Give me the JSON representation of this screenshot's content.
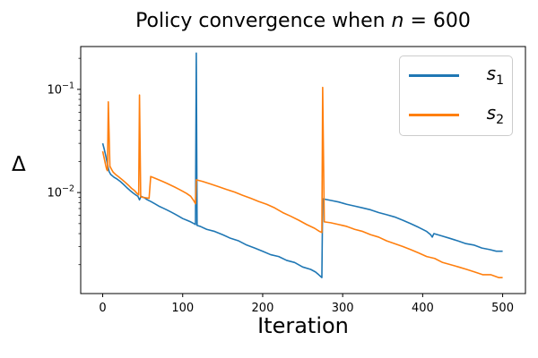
{
  "figure": {
    "title_prefix": "Policy convergence when ",
    "title_var": "n",
    "title_suffix": " = 600"
  },
  "colors": {
    "series1": "#1f77b4",
    "series2": "#ff7f0e",
    "spine": "#000000",
    "legend_border": "#cccccc",
    "background": "#ffffff"
  },
  "chart_data": {
    "type": "line",
    "title": "Policy convergence when n = 600",
    "xlabel": "Iteration",
    "ylabel": "Δ",
    "grid": false,
    "legend_position": "upper right",
    "x_axis": {
      "scale": "linear",
      "lim": [
        -27.5,
        528.5
      ],
      "ticks": [
        {
          "value": 0,
          "label": "0"
        },
        {
          "value": 100,
          "label": "100"
        },
        {
          "value": 200,
          "label": "200"
        },
        {
          "value": 300,
          "label": "300"
        },
        {
          "value": 400,
          "label": "400"
        },
        {
          "value": 500,
          "label": "500"
        }
      ]
    },
    "y_axis": {
      "scale": "log",
      "lim": [
        0.00105,
        0.26
      ],
      "major_ticks": [
        {
          "value": 0.1,
          "base": "10",
          "exp": "−1"
        },
        {
          "value": 0.01,
          "base": "10",
          "exp": "−2"
        }
      ],
      "minor_ticks": [
        0.002,
        0.003,
        0.004,
        0.005,
        0.006,
        0.007,
        0.008,
        0.009,
        0.02,
        0.03,
        0.04,
        0.05,
        0.06,
        0.07,
        0.08,
        0.09,
        0.2
      ]
    },
    "legend": {
      "entries": [
        {
          "var": "s",
          "sub": "1",
          "color": "#1f77b4"
        },
        {
          "var": "s",
          "sub": "2",
          "color": "#ff7f0e"
        }
      ]
    },
    "series": [
      {
        "name": "s_1",
        "color": "#1f77b4",
        "points": [
          [
            0,
            0.03
          ],
          [
            2,
            0.0262
          ],
          [
            4,
            0.0224
          ],
          [
            6,
            0.0187
          ],
          [
            8,
            0.016
          ],
          [
            10,
            0.015
          ],
          [
            14,
            0.0141
          ],
          [
            18,
            0.0135
          ],
          [
            22,
            0.0128
          ],
          [
            26,
            0.012
          ],
          [
            30,
            0.0112
          ],
          [
            34,
            0.0105
          ],
          [
            38,
            0.0099
          ],
          [
            42,
            0.0094
          ],
          [
            44,
            0.0092
          ],
          [
            46,
            0.0085
          ],
          [
            48,
            0.0092
          ],
          [
            52,
            0.0089
          ],
          [
            56,
            0.0085
          ],
          [
            60,
            0.0082
          ],
          [
            65,
            0.0078
          ],
          [
            70,
            0.0074
          ],
          [
            75,
            0.0071
          ],
          [
            80,
            0.0068
          ],
          [
            85,
            0.0065
          ],
          [
            90,
            0.0062
          ],
          [
            95,
            0.0059
          ],
          [
            100,
            0.0056
          ],
          [
            105,
            0.0054
          ],
          [
            110,
            0.0052
          ],
          [
            114,
            0.005
          ],
          [
            116,
            0.0049
          ],
          [
            117,
            0.225
          ],
          [
            118,
            0.0048
          ],
          [
            122,
            0.0047
          ],
          [
            130,
            0.0044
          ],
          [
            140,
            0.0042
          ],
          [
            150,
            0.0039
          ],
          [
            160,
            0.0036
          ],
          [
            170,
            0.0034
          ],
          [
            180,
            0.0031
          ],
          [
            190,
            0.0029
          ],
          [
            200,
            0.0027
          ],
          [
            210,
            0.0025
          ],
          [
            220,
            0.0024
          ],
          [
            230,
            0.0022
          ],
          [
            240,
            0.0021
          ],
          [
            250,
            0.0019
          ],
          [
            260,
            0.0018
          ],
          [
            266,
            0.0017
          ],
          [
            270,
            0.0016
          ],
          [
            274,
            0.0015
          ],
          [
            275,
            0.0087
          ],
          [
            285,
            0.0084
          ],
          [
            295,
            0.0081
          ],
          [
            305,
            0.0077
          ],
          [
            315,
            0.0074
          ],
          [
            325,
            0.0071
          ],
          [
            335,
            0.0068
          ],
          [
            345,
            0.0064
          ],
          [
            355,
            0.0061
          ],
          [
            365,
            0.0058
          ],
          [
            375,
            0.0054
          ],
          [
            385,
            0.005
          ],
          [
            395,
            0.0046
          ],
          [
            405,
            0.0042
          ],
          [
            410,
            0.0039
          ],
          [
            412,
            0.0037
          ],
          [
            414,
            0.004
          ],
          [
            424,
            0.0038
          ],
          [
            434,
            0.0036
          ],
          [
            444,
            0.0034
          ],
          [
            454,
            0.0032
          ],
          [
            464,
            0.0031
          ],
          [
            474,
            0.0029
          ],
          [
            484,
            0.0028
          ],
          [
            492,
            0.0027
          ],
          [
            500,
            0.0027
          ]
        ]
      },
      {
        "name": "s_2",
        "color": "#ff7f0e",
        "points": [
          [
            0,
            0.0251
          ],
          [
            2,
            0.0213
          ],
          [
            4,
            0.018
          ],
          [
            5,
            0.0168
          ],
          [
            6,
            0.0163
          ],
          [
            7,
            0.0757
          ],
          [
            9,
            0.018
          ],
          [
            11,
            0.0168
          ],
          [
            13,
            0.0158
          ],
          [
            16,
            0.015
          ],
          [
            20,
            0.0142
          ],
          [
            24,
            0.0134
          ],
          [
            28,
            0.0126
          ],
          [
            32,
            0.0118
          ],
          [
            36,
            0.011
          ],
          [
            40,
            0.0104
          ],
          [
            43,
            0.0098
          ],
          [
            45,
            0.0095
          ],
          [
            46,
            0.0882
          ],
          [
            47.5,
            0.0091
          ],
          [
            50,
            0.009
          ],
          [
            54,
            0.0089
          ],
          [
            58,
            0.0088
          ],
          [
            60,
            0.0143
          ],
          [
            65,
            0.0138
          ],
          [
            70,
            0.0133
          ],
          [
            75,
            0.0128
          ],
          [
            80,
            0.0123
          ],
          [
            85,
            0.0118
          ],
          [
            90,
            0.0113
          ],
          [
            95,
            0.0108
          ],
          [
            100,
            0.0103
          ],
          [
            105,
            0.0098
          ],
          [
            110,
            0.0092
          ],
          [
            114,
            0.0083
          ],
          [
            116,
            0.0078
          ],
          [
            117,
            0.0133
          ],
          [
            125,
            0.0128
          ],
          [
            135,
            0.0121
          ],
          [
            145,
            0.0114
          ],
          [
            155,
            0.0107
          ],
          [
            165,
            0.0101
          ],
          [
            175,
            0.0094
          ],
          [
            185,
            0.0088
          ],
          [
            195,
            0.0082
          ],
          [
            205,
            0.0077
          ],
          [
            215,
            0.0071
          ],
          [
            225,
            0.0064
          ],
          [
            235,
            0.0059
          ],
          [
            245,
            0.0054
          ],
          [
            255,
            0.0049
          ],
          [
            265,
            0.0045
          ],
          [
            271,
            0.0042
          ],
          [
            274,
            0.0041
          ],
          [
            275,
            0.1045
          ],
          [
            277,
            0.0052
          ],
          [
            285,
            0.0051
          ],
          [
            295,
            0.0049
          ],
          [
            305,
            0.0047
          ],
          [
            315,
            0.0044
          ],
          [
            325,
            0.0042
          ],
          [
            335,
            0.0039
          ],
          [
            345,
            0.0037
          ],
          [
            355,
            0.0034
          ],
          [
            365,
            0.0032
          ],
          [
            375,
            0.003
          ],
          [
            385,
            0.0028
          ],
          [
            395,
            0.0026
          ],
          [
            405,
            0.0024
          ],
          [
            415,
            0.0023
          ],
          [
            425,
            0.0021
          ],
          [
            435,
            0.002
          ],
          [
            445,
            0.0019
          ],
          [
            455,
            0.0018
          ],
          [
            465,
            0.0017
          ],
          [
            475,
            0.0016
          ],
          [
            485,
            0.0016
          ],
          [
            495,
            0.0015
          ],
          [
            500,
            0.0015
          ]
        ]
      }
    ]
  }
}
